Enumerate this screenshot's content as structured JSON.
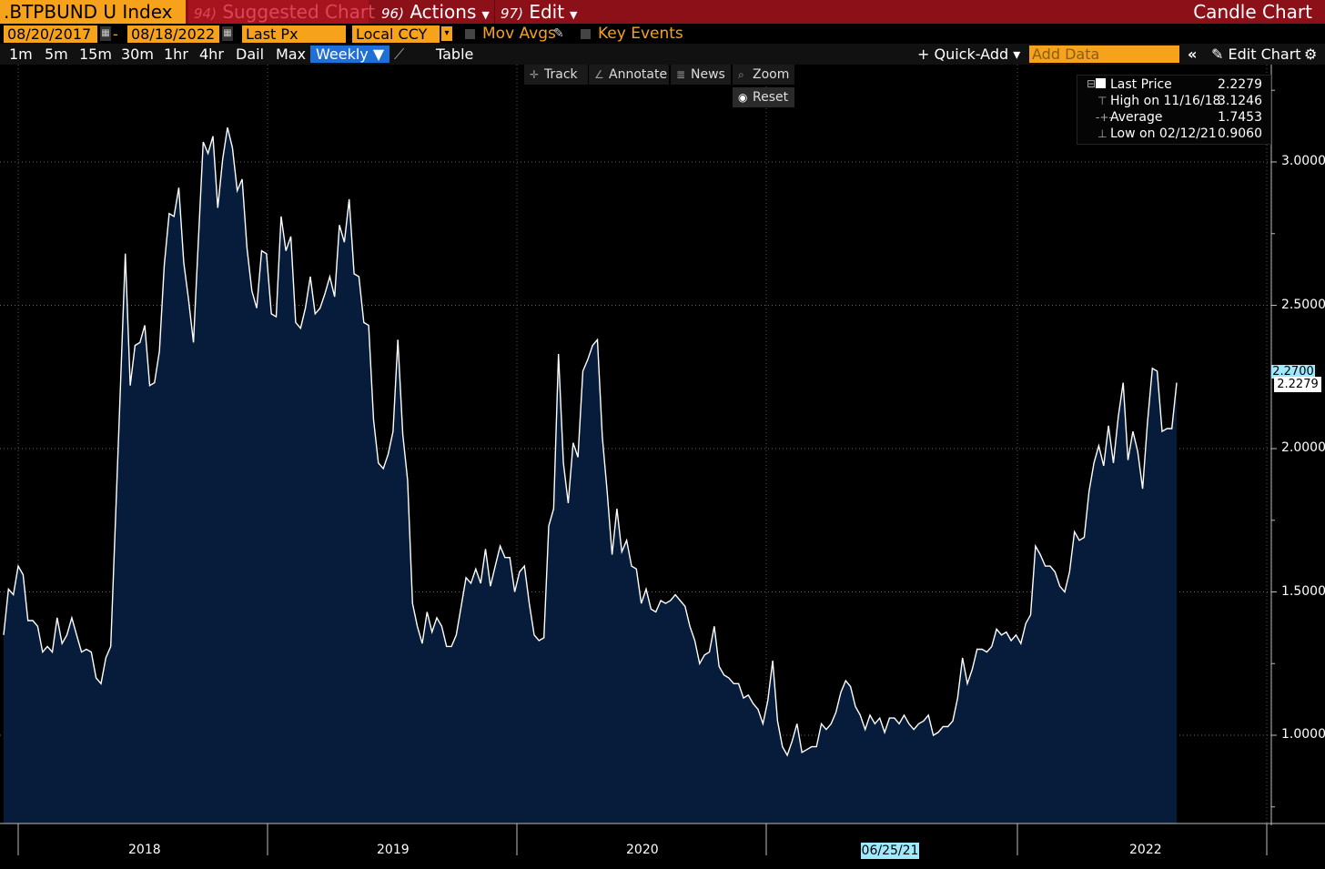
{
  "toolbar": {
    "ticker": ".BTPBUND U Index",
    "suggested_num": "94)",
    "suggested_label": "Suggested Charts",
    "actions_num": "96)",
    "actions_label": "Actions",
    "edit_num": "97)",
    "edit_label": "Edit",
    "chart_type": "Candle Chart"
  },
  "settings": {
    "start_date": "08/20/2017",
    "end_date": "08/18/2022",
    "price_field": "Last Px",
    "currency": "Local CCY",
    "mov_avgs": "Mov Avgs",
    "key_events": "Key Events"
  },
  "timeframes": [
    "1m",
    "5m",
    "15m",
    "30m",
    "1hr",
    "4hr",
    "Dail",
    "Max"
  ],
  "periodicity": "Weekly ▼",
  "table_label": "Table",
  "quick_add": "+ Quick-Add ▾",
  "add_data_placeholder": "Add Data",
  "collapse": "«",
  "edit_chart": "Edit Chart",
  "tools": {
    "track": "Track",
    "annotate": "Annotate",
    "news": "News",
    "zoom": "Zoom",
    "reset": "Reset"
  },
  "legend": {
    "last_label": "Last Price",
    "last_value": "2.2279",
    "high_label": "High on 11/16/18",
    "high_value": "3.1246",
    "avg_label": "Average",
    "avg_value": "1.7453",
    "low_label": "Low on 02/12/21",
    "low_value": "0.9060"
  },
  "price_tags": {
    "tag1": "2.2700",
    "tag2": "2.2279"
  },
  "cursor_date": "06/25/21",
  "colors": {
    "fill": "#061c3a",
    "line": "#ffffff",
    "accent": "#f7a21b",
    "bar": "#8b1018"
  },
  "chart_data": {
    "type": "area",
    "title": "",
    "xlabel": "",
    "ylabel": "",
    "x_tick_labels": [
      "2018",
      "2019",
      "2020",
      "06/25/21",
      "2022"
    ],
    "y_tick_labels": [
      "1.0000",
      "1.5000",
      "2.0000",
      "2.5000",
      "3.0000"
    ],
    "ylim": [
      0.7,
      3.3
    ],
    "grid": true,
    "series": [
      {
        "values": [
          1.35,
          1.51,
          1.49,
          1.59,
          1.56,
          1.4,
          1.4,
          1.38,
          1.29,
          1.31,
          1.29,
          1.41,
          1.32,
          1.35,
          1.41,
          1.35,
          1.29,
          1.3,
          1.29,
          1.2,
          1.18,
          1.27,
          1.31,
          1.76,
          2.22,
          2.68,
          2.22,
          2.36,
          2.37,
          2.43,
          2.22,
          2.23,
          2.34,
          2.64,
          2.82,
          2.81,
          2.91,
          2.65,
          2.52,
          2.37,
          2.72,
          3.07,
          3.03,
          3.09,
          2.84,
          3.01,
          3.12,
          3.05,
          2.9,
          2.94,
          2.7,
          2.55,
          2.49,
          2.69,
          2.68,
          2.47,
          2.46,
          2.81,
          2.69,
          2.74,
          2.44,
          2.42,
          2.49,
          2.6,
          2.47,
          2.49,
          2.54,
          2.6,
          2.53,
          2.78,
          2.72,
          2.87,
          2.61,
          2.6,
          2.44,
          2.43,
          2.1,
          1.95,
          1.93,
          1.98,
          2.06,
          2.38,
          2.05,
          1.89,
          1.46,
          1.38,
          1.32,
          1.43,
          1.36,
          1.41,
          1.38,
          1.31,
          1.31,
          1.35,
          1.45,
          1.55,
          1.53,
          1.58,
          1.53,
          1.65,
          1.52,
          1.59,
          1.66,
          1.62,
          1.62,
          1.5,
          1.57,
          1.59,
          1.46,
          1.35,
          1.33,
          1.34,
          1.73,
          1.79,
          2.33,
          1.95,
          1.81,
          2.02,
          1.97,
          2.27,
          2.31,
          2.36,
          2.38,
          2.04,
          1.85,
          1.63,
          1.79,
          1.64,
          1.68,
          1.59,
          1.58,
          1.46,
          1.51,
          1.44,
          1.43,
          1.47,
          1.46,
          1.47,
          1.49,
          1.47,
          1.45,
          1.38,
          1.33,
          1.25,
          1.28,
          1.29,
          1.38,
          1.24,
          1.21,
          1.2,
          1.18,
          1.18,
          1.13,
          1.14,
          1.11,
          1.09,
          1.04,
          1.12,
          1.26,
          1.05,
          0.96,
          0.93,
          0.98,
          1.04,
          0.94,
          0.95,
          0.96,
          0.96,
          1.04,
          1.02,
          1.04,
          1.08,
          1.15,
          1.19,
          1.17,
          1.1,
          1.07,
          1.02,
          1.07,
          1.04,
          1.06,
          1.01,
          1.06,
          1.06,
          1.04,
          1.07,
          1.04,
          1.02,
          1.04,
          1.05,
          1.07,
          1.0,
          1.01,
          1.03,
          1.03,
          1.05,
          1.13,
          1.27,
          1.18,
          1.23,
          1.3,
          1.3,
          1.29,
          1.31,
          1.37,
          1.35,
          1.36,
          1.33,
          1.35,
          1.32,
          1.39,
          1.42,
          1.66,
          1.63,
          1.59,
          1.59,
          1.57,
          1.52,
          1.5,
          1.57,
          1.71,
          1.68,
          1.69,
          1.85,
          1.95,
          2.01,
          1.94,
          2.08,
          1.95,
          2.11,
          2.23,
          1.96,
          2.06,
          1.99,
          1.86,
          2.09,
          2.28,
          2.27,
          2.06,
          2.07,
          2.07,
          2.23
        ]
      }
    ]
  }
}
